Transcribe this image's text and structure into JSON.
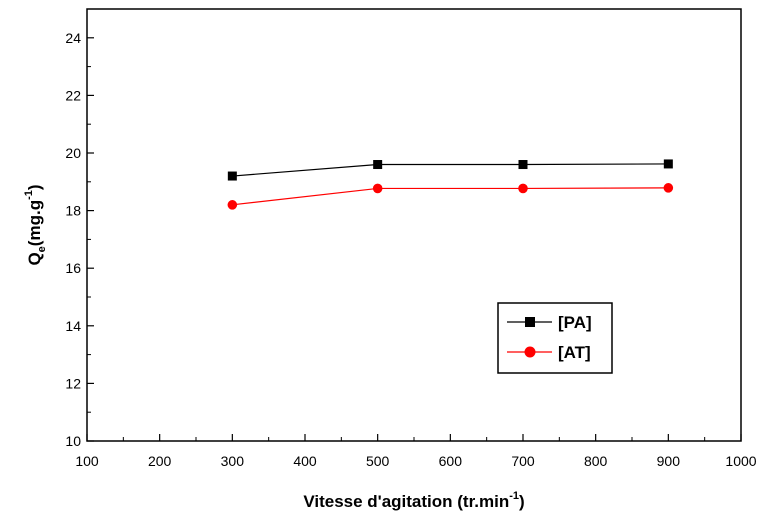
{
  "chart_data": {
    "type": "line",
    "title": "",
    "xlabel": {
      "main": "Vitesse d'agitation (tr.min",
      "sup": "-1",
      "tail": ")"
    },
    "ylabel": {
      "main": "Q",
      "sub": "e",
      "mid": "(mg.g",
      "sup": "-1",
      "tail": ")"
    },
    "xlim": [
      100,
      1000
    ],
    "ylim": [
      10,
      25
    ],
    "xticks": [
      100,
      200,
      300,
      400,
      500,
      600,
      700,
      800,
      900,
      1000
    ],
    "yticks": [
      10,
      12,
      14,
      16,
      18,
      20,
      22,
      24
    ],
    "grid": false,
    "legend_position": "lower-right",
    "series": [
      {
        "name": "[PA]",
        "color": "#000000",
        "marker": "square",
        "x": [
          300,
          500,
          700,
          900
        ],
        "y": [
          19.2,
          19.6,
          19.6,
          19.62
        ]
      },
      {
        "name": "[AT]",
        "color": "#ff0000",
        "marker": "circle",
        "x": [
          300,
          500,
          700,
          900
        ],
        "y": [
          18.2,
          18.77,
          18.77,
          18.79
        ]
      }
    ]
  }
}
